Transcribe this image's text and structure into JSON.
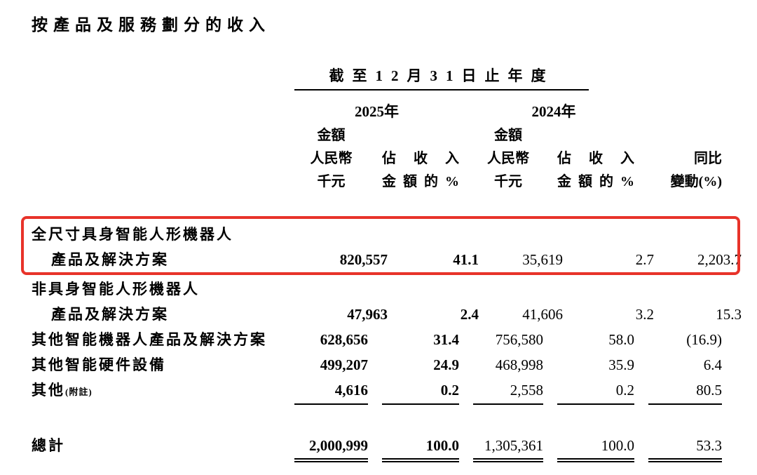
{
  "page": {
    "title": "按產品及服務劃分的收入"
  },
  "highlight_color": "#e8332a",
  "table": {
    "period_header": "截至12月31日止年度",
    "years": {
      "y2025": "2025年",
      "y2024": "2024年"
    },
    "headers": {
      "amount_2025": {
        "l1": "金額",
        "l2": "人民幣",
        "l3": "千元"
      },
      "pct_2025": {
        "l1": "佔收入",
        "l2": "金額的%"
      },
      "amount_2024": {
        "l1": "金額",
        "l2": "人民幣",
        "l3": "千元"
      },
      "pct_2024": {
        "l1": "佔收入",
        "l2": "金額的%"
      },
      "yoy": {
        "l1": "同比",
        "l2": "變動(%)"
      }
    },
    "rows": [
      {
        "label1": "全尺寸具身智能人形機器人",
        "label2": "產品及解決方案",
        "a2025": "820,557",
        "p2025": "41.1",
        "a2024": "35,619",
        "p2024": "2.7",
        "yoy": "2,203.7"
      },
      {
        "label1": "非具身智能人形機器人",
        "label2": "產品及解決方案",
        "a2025": "47,963",
        "p2025": "2.4",
        "a2024": "41,606",
        "p2024": "3.2",
        "yoy": "15.3"
      },
      {
        "label1": "其他智能機器人產品及解決方案",
        "a2025": "628,656",
        "p2025": "31.4",
        "a2024": "756,580",
        "p2024": "58.0",
        "yoy": "(16.9)"
      },
      {
        "label1": "其他智能硬件設備",
        "a2025": "499,207",
        "p2025": "24.9",
        "a2024": "468,998",
        "p2024": "35.9",
        "yoy": "6.4"
      },
      {
        "label1": "其他",
        "note": "(附註)",
        "a2025": "4,616",
        "p2025": "0.2",
        "a2024": "2,558",
        "p2024": "0.2",
        "yoy": "80.5"
      }
    ],
    "total": {
      "label": "總計",
      "a2025": "2,000,999",
      "p2025": "100.0",
      "a2024": "1,305,361",
      "p2024": "100.0",
      "yoy": "53.3"
    }
  }
}
